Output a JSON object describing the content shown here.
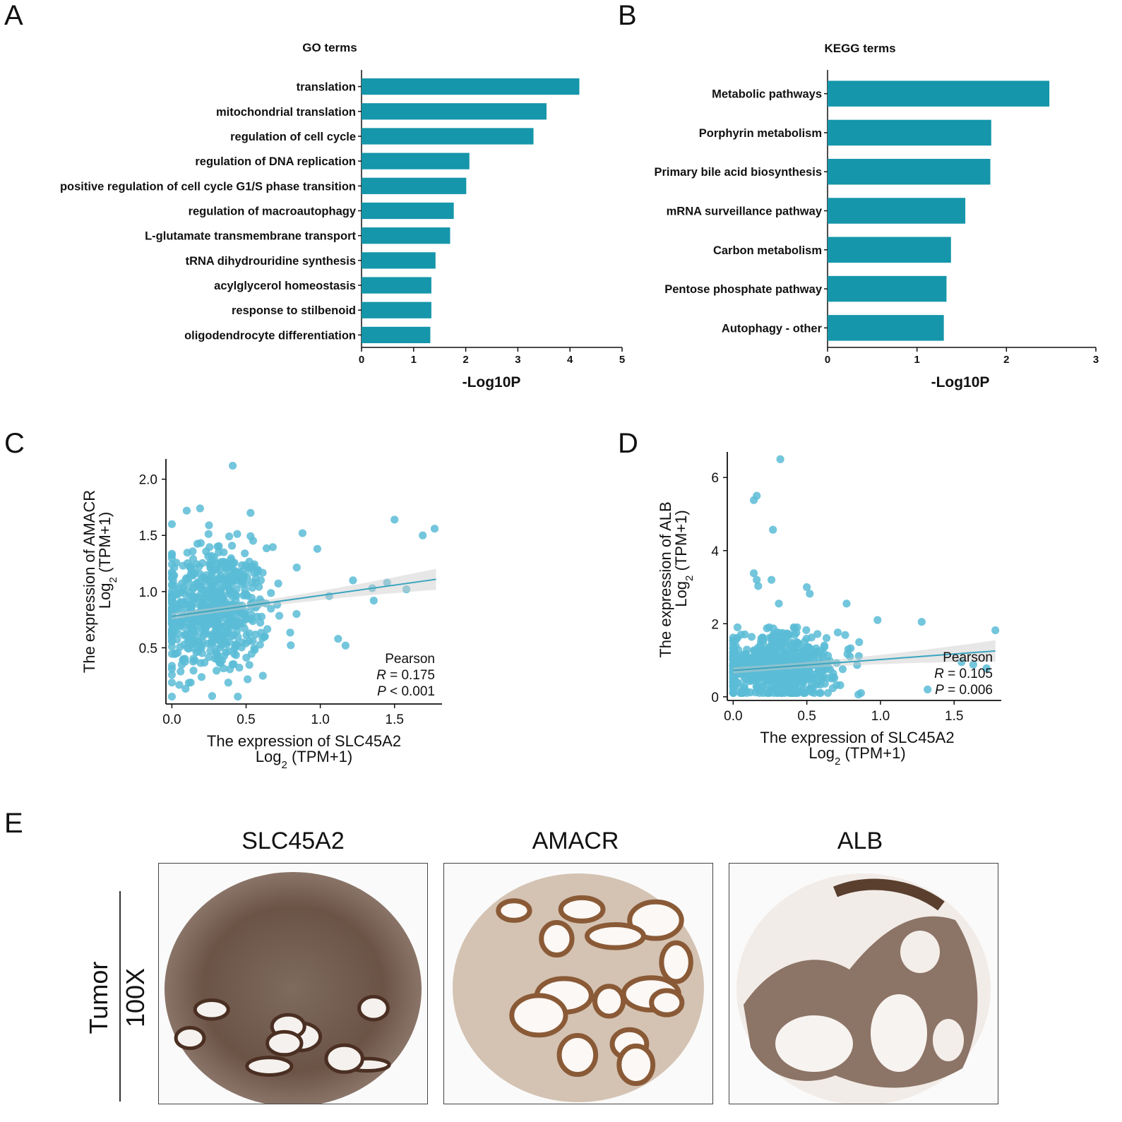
{
  "panel_labels": {
    "a": "A",
    "b": "B",
    "c": "C",
    "d": "D",
    "e": "E"
  },
  "colors": {
    "bar": "#1596aa",
    "point": "#5bbcd6",
    "line": "#3aa5bf",
    "band": "#c9c9c9",
    "axis": "#111111",
    "stain_dark": "#5a3f2e",
    "stain_light": "#cdbfb6"
  },
  "chart_data": [
    {
      "id": "A",
      "type": "bar",
      "orientation": "horizontal",
      "title": "GO terms",
      "xlabel": "-Log10P",
      "categories": [
        "translation",
        "mitochondrial translation",
        "regulation of cell cycle",
        "regulation of DNA replication",
        "positive regulation of cell cycle G1/S phase transition",
        "regulation of macroautophagy",
        "L-glutamate transmembrane transport",
        "tRNA dihydrouridine synthesis",
        "acylglycerol homeostasis",
        "response to stilbenoid",
        "oligodendrocyte differentiation"
      ],
      "values": [
        4.18,
        3.55,
        3.3,
        2.07,
        2.01,
        1.77,
        1.7,
        1.42,
        1.34,
        1.34,
        1.32
      ],
      "xlim": [
        0,
        5
      ],
      "xticks": [
        "0",
        "1",
        "2",
        "3",
        "4",
        "5"
      ]
    },
    {
      "id": "B",
      "type": "bar",
      "orientation": "horizontal",
      "title": "KEGG terms",
      "xlabel": "-Log10P",
      "categories": [
        "Metabolic pathways",
        "Porphyrin metabolism",
        "Primary bile acid biosynthesis",
        "mRNA surveillance pathway",
        "Carbon metabolism",
        "Pentose phosphate pathway",
        "Autophagy - other"
      ],
      "values": [
        2.48,
        1.83,
        1.82,
        1.54,
        1.38,
        1.33,
        1.3
      ],
      "xlim": [
        0,
        3
      ],
      "xticks": [
        "0",
        "1",
        "2",
        "3"
      ]
    },
    {
      "id": "C",
      "type": "scatter",
      "xlabel": "The expression of SLC45A2",
      "xlabel2_main": "Log",
      "xlabel2_sub": "2",
      "xlabel2_rest": " (TPM+1)",
      "ylabel": "The expression of AMACR",
      "ylabel2_main": "Log",
      "ylabel2_sub": "2",
      "ylabel2_rest": " (TPM+1)",
      "xlim": [
        -0.04,
        1.82
      ],
      "ylim": [
        0.0,
        2.18
      ],
      "xticks": [
        0.0,
        0.5,
        1.0,
        1.5
      ],
      "xtick_labels": [
        "0.0",
        "0.5",
        "1.0",
        "1.5"
      ],
      "yticks": [
        0.5,
        1.0,
        1.5,
        2.0
      ],
      "ytick_labels": [
        "0.5",
        "1.0",
        "1.5",
        "2.0"
      ],
      "fit": {
        "intercept": 0.78,
        "slope": 0.185,
        "x_range": [
          0.0,
          1.78
        ]
      },
      "stats": {
        "method": "Pearson",
        "r_label": "R",
        "r_text": " = 0.175",
        "p_label": "P",
        "p_text": " < 0.001"
      },
      "outliers": [
        {
          "x": 0.41,
          "y": 2.12
        },
        {
          "x": 1.5,
          "y": 1.64
        },
        {
          "x": 1.77,
          "y": 1.56
        },
        {
          "x": 1.69,
          "y": 1.5
        },
        {
          "x": 0.0,
          "y": 1.6
        },
        {
          "x": 0.1,
          "y": 1.72
        },
        {
          "x": 0.19,
          "y": 1.74
        },
        {
          "x": 0.25,
          "y": 1.59
        },
        {
          "x": 0.53,
          "y": 1.7
        },
        {
          "x": 0.88,
          "y": 1.52
        },
        {
          "x": 0.98,
          "y": 1.38
        },
        {
          "x": 1.22,
          "y": 1.1
        },
        {
          "x": 1.35,
          "y": 1.03
        },
        {
          "x": 1.45,
          "y": 1.08
        },
        {
          "x": 1.58,
          "y": 1.02
        },
        {
          "x": 1.36,
          "y": 0.92
        },
        {
          "x": 1.06,
          "y": 0.96
        },
        {
          "x": 1.12,
          "y": 0.58
        },
        {
          "x": 1.17,
          "y": 0.52
        },
        {
          "x": 0.38,
          "y": 0.19
        },
        {
          "x": 0.05,
          "y": 0.17
        },
        {
          "x": 0.0,
          "y": 0.26
        },
        {
          "x": 0.2,
          "y": 0.24
        },
        {
          "x": 0.51,
          "y": 0.22
        }
      ],
      "n_cluster_points": 620,
      "cluster": {
        "x_mean": 0.27,
        "x_sd": 0.19,
        "y_mean": 0.84,
        "y_sd": 0.28
      }
    },
    {
      "id": "D",
      "type": "scatter",
      "xlabel": "The expression of SLC45A2",
      "xlabel2_main": "Log",
      "xlabel2_sub": "2",
      "xlabel2_rest": " (TPM+1)",
      "ylabel": "The expression of ALB",
      "ylabel2_main": "Log",
      "ylabel2_sub": "2",
      "ylabel2_rest": " (TPM+1)",
      "xlim": [
        -0.04,
        1.82
      ],
      "ylim": [
        -0.1,
        6.7
      ],
      "xticks": [
        0.0,
        0.5,
        1.0,
        1.5
      ],
      "xtick_labels": [
        "0.0",
        "0.5",
        "1.0",
        "1.5"
      ],
      "yticks": [
        0,
        2,
        4,
        6
      ],
      "ytick_labels": [
        "0",
        "2",
        "4",
        "6"
      ],
      "fit": {
        "intercept": 0.72,
        "slope": 0.3,
        "x_range": [
          0.0,
          1.78
        ]
      },
      "stats": {
        "method": "Pearson",
        "r_label": "R",
        "r_text": " = 0.105",
        "p_label": "P",
        "p_text": " = 0.006"
      },
      "outliers": [
        {
          "x": 0.32,
          "y": 6.5
        },
        {
          "x": 0.16,
          "y": 5.5
        },
        {
          "x": 0.14,
          "y": 5.38
        },
        {
          "x": 0.27,
          "y": 4.57
        },
        {
          "x": 0.14,
          "y": 3.38
        },
        {
          "x": 0.16,
          "y": 3.2
        },
        {
          "x": 0.17,
          "y": 3.03
        },
        {
          "x": 0.26,
          "y": 3.2
        },
        {
          "x": 0.5,
          "y": 3.0
        },
        {
          "x": 0.52,
          "y": 2.82
        },
        {
          "x": 0.31,
          "y": 2.55
        },
        {
          "x": 0.77,
          "y": 2.55
        },
        {
          "x": 0.98,
          "y": 2.1
        },
        {
          "x": 1.28,
          "y": 2.05
        },
        {
          "x": 1.78,
          "y": 1.82
        },
        {
          "x": 0.85,
          "y": 0.06
        },
        {
          "x": 1.32,
          "y": 0.2
        },
        {
          "x": 1.55,
          "y": 0.95
        },
        {
          "x": 1.63,
          "y": 0.88
        },
        {
          "x": 1.72,
          "y": 0.78
        }
      ],
      "n_cluster_points": 640,
      "cluster": {
        "x_mean": 0.3,
        "x_sd": 0.21,
        "y_mean": 0.82,
        "y_sd": 0.45
      }
    }
  ],
  "tissue_panel": {
    "row_label": "Tumor",
    "magnification": "100X",
    "columns": [
      {
        "gene": "SLC45A2"
      },
      {
        "gene": "AMACR"
      },
      {
        "gene": "ALB"
      }
    ]
  }
}
